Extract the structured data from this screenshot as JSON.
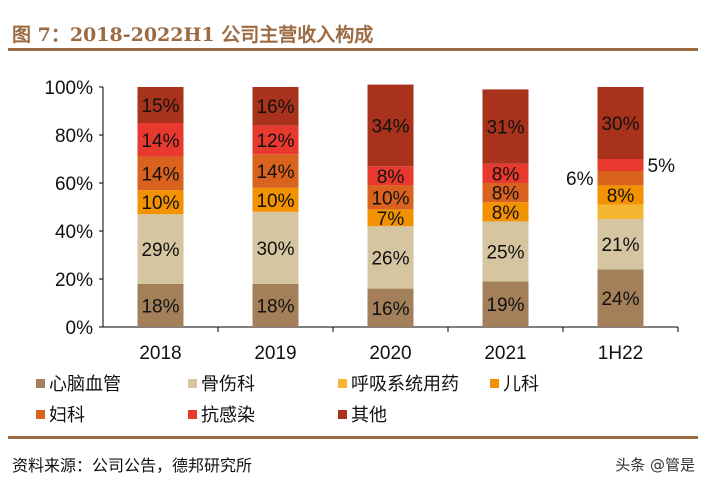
{
  "title": "图 7：2018-2022H1 公司主营收入构成",
  "source": "资料来源：公司公告，德邦研究所",
  "watermark": "头条 @管是",
  "chart_data": {
    "type": "bar",
    "stacked": true,
    "categories": [
      "2018",
      "2019",
      "2020",
      "2021",
      "1H22"
    ],
    "ylim": [
      0,
      100
    ],
    "yticks": [
      "0%",
      "20%",
      "40%",
      "60%",
      "80%",
      "100%"
    ],
    "legend_position": "bottom",
    "series": [
      {
        "name": "心脑血管",
        "color": "#A3805A",
        "values": [
          18,
          18,
          16,
          19,
          24
        ],
        "labels": [
          "18%",
          "18%",
          "16%",
          "19%",
          "24%"
        ]
      },
      {
        "name": "骨伤科",
        "color": "#D5C5A0",
        "values": [
          29,
          30,
          26,
          25,
          21
        ],
        "labels": [
          "29%",
          "30%",
          "26%",
          "25%",
          "21%"
        ]
      },
      {
        "name": "呼吸系统用药",
        "color": "#F5B731",
        "values": [
          0,
          0,
          0,
          0,
          6
        ],
        "labels": [
          "",
          "",
          "",
          "",
          ""
        ]
      },
      {
        "name": "儿科",
        "color": "#F39200",
        "values": [
          10,
          10,
          7,
          8,
          8
        ],
        "labels": [
          "10%",
          "10%",
          "7%",
          "8%",
          "8%"
        ]
      },
      {
        "name": "妇科",
        "color": "#D9631E",
        "values": [
          14,
          14,
          10,
          8,
          6
        ],
        "labels": [
          "14%",
          "14%",
          "10%",
          "8%",
          "6%"
        ]
      },
      {
        "name": "抗感染",
        "color": "#E8392E",
        "values": [
          14,
          12,
          8,
          8,
          5
        ],
        "labels": [
          "14%",
          "12%",
          "8%",
          "8%",
          "5%"
        ]
      },
      {
        "name": "其他",
        "color": "#A8321B",
        "values": [
          15,
          16,
          34,
          31,
          30
        ],
        "labels": [
          "15%",
          "16%",
          "34%",
          "31%",
          "30%"
        ]
      }
    ]
  }
}
